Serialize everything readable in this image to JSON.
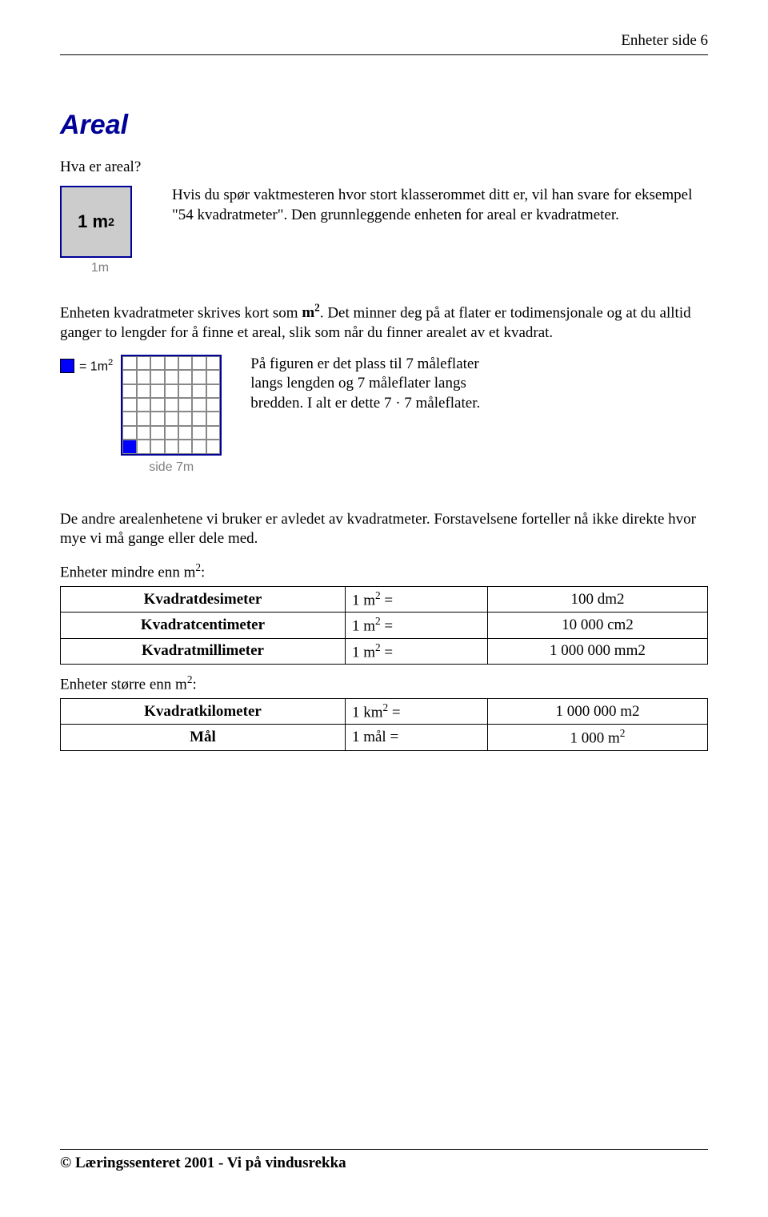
{
  "header": {
    "text": "Enheter side 6"
  },
  "title": "Areal",
  "subquestion": "Hva er areal?",
  "unit_figure": {
    "box_label_html": "1 m<sup>2</sup>",
    "box_bg": "#cccccc",
    "box_border": "#000099",
    "caption": "1m"
  },
  "intro_html": "Hvis du spør vaktmesteren hvor stort klasserommet ditt er, vil han svare for eksempel \"54 kvadratmeter\". Den grunnleggende enheten for areal er kvadratmeter.",
  "para1_html": "Enheten kvadratmeter skrives kort som <b>m<sup>2</sup></b>. Det minner deg på at flater er todimensjonale og at du alltid ganger to lengder for å finne et areal, slik som når du finner arealet av et kvadrat.",
  "grid_figure": {
    "legend_html": "= 1m<sup>2</sup>",
    "legend_color": "#0000ff",
    "caption": "side 7m",
    "size": 7,
    "filled_cell_index": 42,
    "border_color": "#000099"
  },
  "grid_text_html": "På figuren er det plass til 7 måleflater langs lengden og 7 måleflater langs bredden. I alt er dette 7 · 7 måleflater.",
  "para2_html": "De andre arealenhetene vi bruker er avledet av kvadratmeter. Forstavelsene forteller nå ikke direkte hvor mye vi må gange eller dele med.",
  "smaller_heading_html": "Enheter mindre enn m<sup>2</sup>:",
  "table_smaller": {
    "rows": [
      {
        "name": "Kvadratdesimeter",
        "left_html": "1 m<sup>2</sup> =",
        "right": "100 dm2"
      },
      {
        "name": "Kvadratcentimeter",
        "left_html": "1 m<sup>2</sup> =",
        "right": "10 000 cm2"
      },
      {
        "name": "Kvadratmillimeter",
        "left_html": "1 m<sup>2</sup> =",
        "right": "1 000 000 mm2"
      }
    ]
  },
  "larger_heading_html": "Enheter større enn m<sup>2</sup>:",
  "table_larger": {
    "rows": [
      {
        "name": "Kvadratkilometer",
        "left_html": "1 km<sup>2</sup> =",
        "right": "1 000 000 m2"
      },
      {
        "name": "Mål",
        "left_html": "1 mål =",
        "right_html": "1 000 m<sup>2</sup>"
      }
    ]
  },
  "footer": "© Læringssenteret 2001 - Vi på vindusrekka",
  "colors": {
    "text": "#000000",
    "accent": "#000099",
    "grey_fill": "#cccccc",
    "grid_line": "#888888",
    "blue_fill": "#0000ff",
    "caption_grey": "#808080",
    "bg": "#ffffff"
  },
  "typography": {
    "body_family": "Times New Roman",
    "body_size_pt": 14,
    "title_family": "Arial",
    "title_size_pt": 24,
    "title_style": "bold italic"
  }
}
